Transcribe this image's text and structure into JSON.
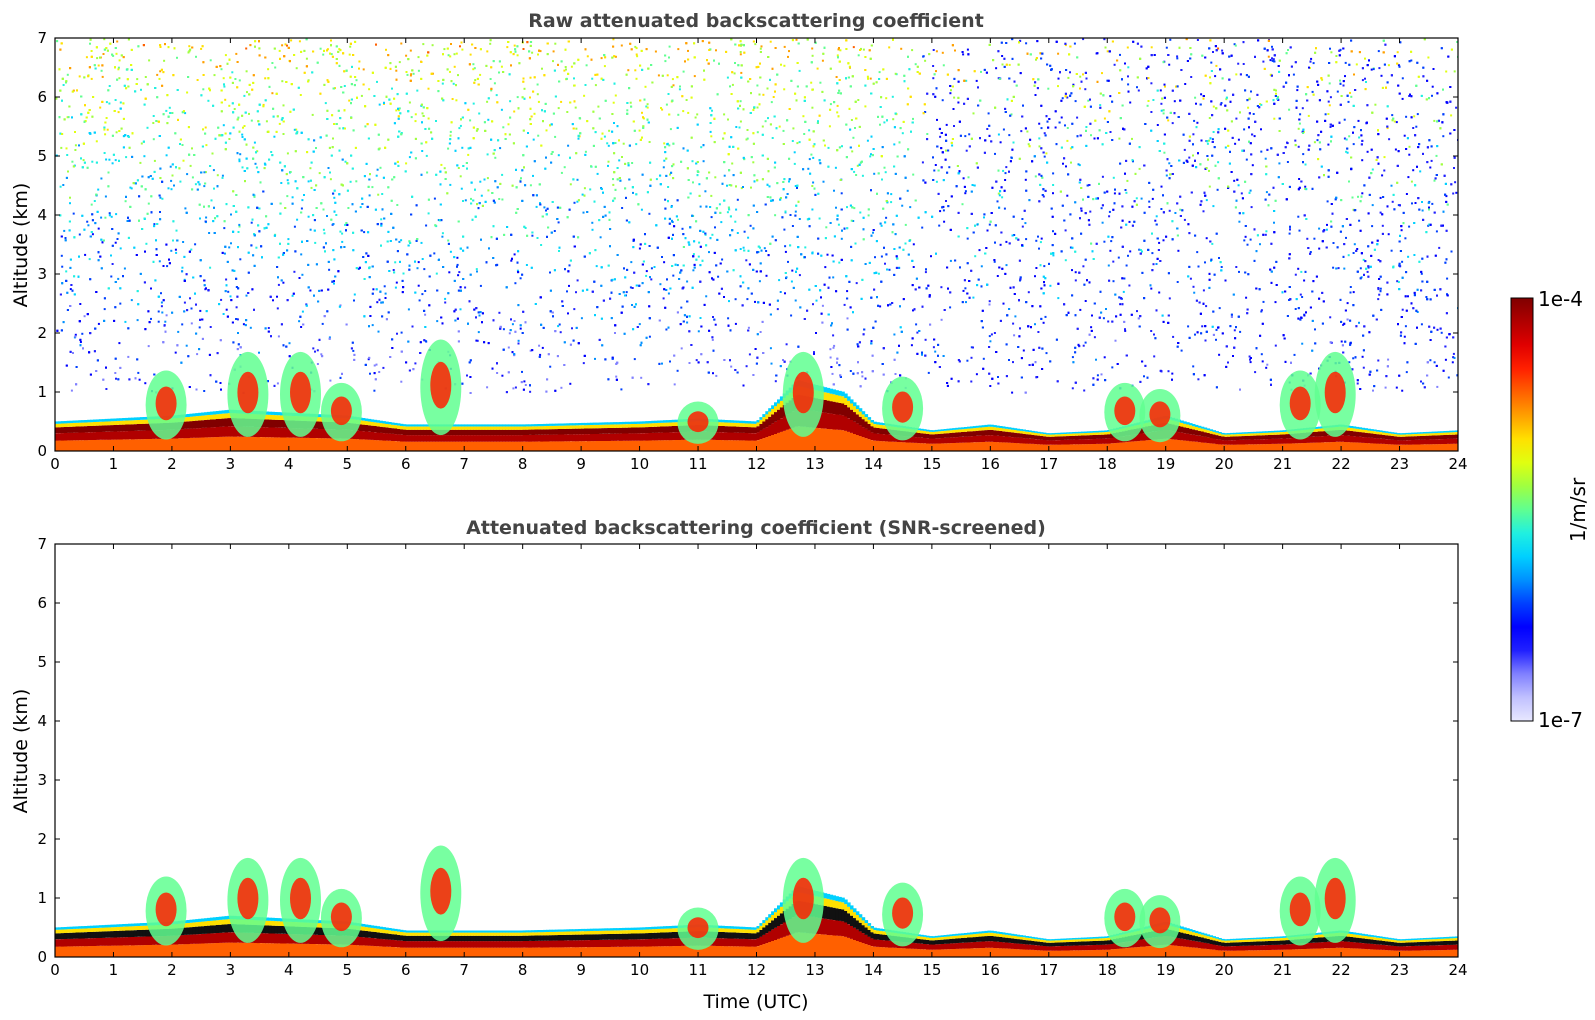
{
  "chart_data": [
    {
      "type": "heatmap",
      "title": "Raw attenuated backscattering coefficient",
      "xlabel": "",
      "ylabel": "Altitude (km)",
      "xlim": [
        0,
        24
      ],
      "ylim": [
        0,
        7
      ],
      "xticks": [
        "0",
        "1",
        "2",
        "3",
        "4",
        "5",
        "6",
        "7",
        "8",
        "9",
        "10",
        "11",
        "12",
        "13",
        "14",
        "15",
        "16",
        "17",
        "18",
        "19",
        "20",
        "21",
        "22",
        "23",
        "24"
      ],
      "yticks": [
        "0",
        "1",
        "2",
        "3",
        "4",
        "5",
        "6",
        "7"
      ],
      "layers": [
        {
          "name": "boundary layer",
          "x": [
            0,
            2,
            3,
            4,
            5,
            6,
            8,
            10,
            11,
            12,
            12.7,
            13.5,
            14,
            15,
            16,
            17,
            18,
            19,
            20,
            21,
            22,
            23,
            24
          ],
          "top_km": [
            0.5,
            0.6,
            0.7,
            0.65,
            0.6,
            0.45,
            0.45,
            0.5,
            0.55,
            0.5,
            1.2,
            1.0,
            0.5,
            0.35,
            0.45,
            0.3,
            0.35,
            0.6,
            0.3,
            0.35,
            0.45,
            0.3,
            0.35
          ]
        },
        {
          "name": "aerosol/cloud features",
          "x": [
            1.9,
            3.3,
            4.2,
            4.9,
            6.6,
            11,
            12.8,
            14.5,
            18.3,
            18.9,
            21.3,
            21.9
          ],
          "top_km": [
            1.3,
            1.6,
            1.6,
            1.1,
            1.8,
            0.8,
            1.6,
            1.2,
            1.1,
            1.0,
            1.3,
            1.6
          ]
        }
      ],
      "background_noise": "high above 1 km (noisy, increasing with altitude)"
    },
    {
      "type": "heatmap",
      "title": "Attenuated backscattering coefficient (SNR-screened)",
      "xlabel": "Time (UTC)",
      "ylabel": "Altitude (km)",
      "xlim": [
        0,
        24
      ],
      "ylim": [
        0,
        7
      ],
      "xticks": [
        "0",
        "1",
        "2",
        "3",
        "4",
        "5",
        "6",
        "7",
        "8",
        "9",
        "10",
        "11",
        "12",
        "13",
        "14",
        "15",
        "16",
        "17",
        "18",
        "19",
        "20",
        "21",
        "22",
        "23",
        "24"
      ],
      "yticks": [
        "0",
        "1",
        "2",
        "3",
        "4",
        "5",
        "6",
        "7"
      ],
      "background_noise": "removed"
    }
  ],
  "colorbar": {
    "min_label": "1e-7",
    "max_label": "1e-4",
    "unit_label": "1/m/sr",
    "scale": "log",
    "colors": [
      "#e8e8ff",
      "#c0c0ff",
      "#8080ff",
      "#2020ff",
      "#0000ff",
      "#0040ff",
      "#0090ff",
      "#00d0ff",
      "#20f0e0",
      "#60ff90",
      "#a0ff40",
      "#e0ff10",
      "#ffe000",
      "#ffa000",
      "#ff6000",
      "#ff2000",
      "#e00000",
      "#b00000",
      "#800000"
    ]
  }
}
